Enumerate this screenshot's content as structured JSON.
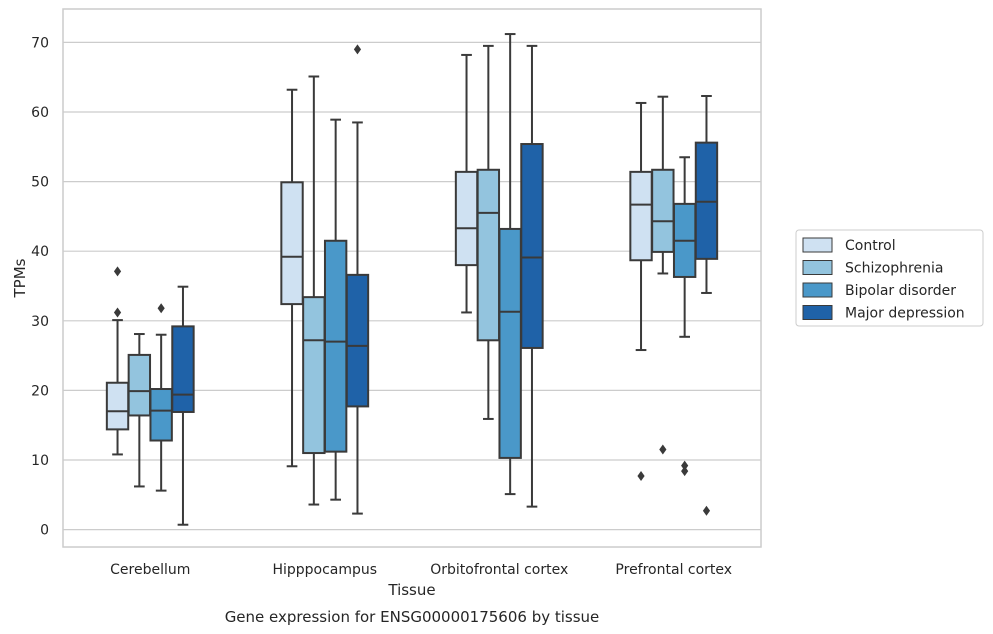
{
  "chart_data": {
    "type": "box",
    "caption": "Gene expression for ENSG00000175606 by tissue",
    "xlabel": "Tissue",
    "ylabel": "TPMs",
    "ylim": [
      -2.5,
      74.8
    ],
    "yticks": [
      0,
      10,
      20,
      30,
      40,
      50,
      60,
      70
    ],
    "grid": "horizontal",
    "legend_position": "right",
    "categories": [
      "Cerebellum",
      "Hipppocampus",
      "Orbitofrontal cortex",
      "Prefrontal cortex"
    ],
    "series": [
      {
        "name": "Control",
        "color": "#cfe1f2",
        "boxes": [
          {
            "whisker_low": 10.8,
            "q1": 14.4,
            "median": 17.0,
            "q3": 21.1,
            "whisker_high": 30.1,
            "outliers": [
              31.2,
              37.1
            ]
          },
          {
            "whisker_low": 9.1,
            "q1": 32.4,
            "median": 39.2,
            "q3": 49.9,
            "whisker_high": 63.2,
            "outliers": []
          },
          {
            "whisker_low": 31.2,
            "q1": 38.0,
            "median": 43.3,
            "q3": 51.4,
            "whisker_high": 68.2,
            "outliers": []
          },
          {
            "whisker_low": 25.8,
            "q1": 38.7,
            "median": 46.7,
            "q3": 51.4,
            "whisker_high": 61.3,
            "outliers": [
              7.7
            ]
          }
        ]
      },
      {
        "name": "Schizophrenia",
        "color": "#93c4de",
        "boxes": [
          {
            "whisker_low": 6.2,
            "q1": 16.4,
            "median": 19.9,
            "q3": 25.1,
            "whisker_high": 28.1,
            "outliers": []
          },
          {
            "whisker_low": 3.6,
            "q1": 11.0,
            "median": 27.2,
            "q3": 33.4,
            "whisker_high": 65.1,
            "outliers": []
          },
          {
            "whisker_low": 15.9,
            "q1": 27.2,
            "median": 45.5,
            "q3": 51.7,
            "whisker_high": 69.5,
            "outliers": []
          },
          {
            "whisker_low": 36.8,
            "q1": 39.9,
            "median": 44.3,
            "q3": 51.7,
            "whisker_high": 62.2,
            "outliers": [
              11.5
            ]
          }
        ]
      },
      {
        "name": "Bipolar disorder",
        "color": "#4a98c9",
        "boxes": [
          {
            "whisker_low": 5.6,
            "q1": 12.8,
            "median": 17.1,
            "q3": 20.2,
            "whisker_high": 28.0,
            "outliers": [
              31.8
            ]
          },
          {
            "whisker_low": 4.3,
            "q1": 11.2,
            "median": 27.0,
            "q3": 41.5,
            "whisker_high": 58.9,
            "outliers": []
          },
          {
            "whisker_low": 5.1,
            "q1": 10.3,
            "median": 31.3,
            "q3": 43.2,
            "whisker_high": 71.2,
            "outliers": []
          },
          {
            "whisker_low": 27.7,
            "q1": 36.3,
            "median": 41.5,
            "q3": 46.8,
            "whisker_high": 53.5,
            "outliers": [
              8.4,
              9.2
            ]
          }
        ]
      },
      {
        "name": "Major depression",
        "color": "#1f62a8",
        "boxes": [
          {
            "whisker_low": 0.7,
            "q1": 16.9,
            "median": 19.4,
            "q3": 29.2,
            "whisker_high": 34.9,
            "outliers": []
          },
          {
            "whisker_low": 2.3,
            "q1": 17.7,
            "median": 26.4,
            "q3": 36.6,
            "whisker_high": 58.5,
            "outliers": [
              69.0
            ]
          },
          {
            "whisker_low": 3.3,
            "q1": 26.1,
            "median": 39.1,
            "q3": 55.4,
            "whisker_high": 69.5,
            "outliers": []
          },
          {
            "whisker_low": 34.0,
            "q1": 38.9,
            "median": 47.1,
            "q3": 55.6,
            "whisker_high": 62.3,
            "outliers": [
              2.7
            ]
          }
        ]
      }
    ]
  }
}
